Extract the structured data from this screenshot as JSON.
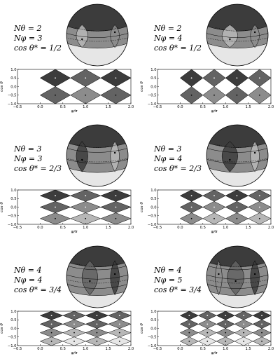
{
  "panels": [
    {
      "id": "a",
      "n_theta_text": "Nθ = 2",
      "n_phi_text": "Nφ = 3",
      "cos_text": "cos θ* = 1/2",
      "n_theta": 2,
      "n_phi": 3,
      "cos_star": 0.5
    },
    {
      "id": "b",
      "n_theta_text": "Nθ = 2",
      "n_phi_text": "Nφ = 4",
      "cos_text": "cos θ* = 1/2",
      "n_theta": 2,
      "n_phi": 4,
      "cos_star": 0.5
    },
    {
      "id": "c",
      "n_theta_text": "Nθ = 3",
      "n_phi_text": "Nφ = 3",
      "cos_text": "cos θ* = 2/3",
      "n_theta": 3,
      "n_phi": 3,
      "cos_star": 0.6667
    },
    {
      "id": "d",
      "n_theta_text": "Nθ = 3",
      "n_phi_text": "Nφ = 4",
      "cos_text": "cos θ* = 2/3",
      "n_theta": 3,
      "n_phi": 4,
      "cos_star": 0.6667
    },
    {
      "id": "e",
      "n_theta_text": "Nθ = 4",
      "n_phi_text": "Nφ = 4",
      "cos_text": "cos θ* = 3/4",
      "n_theta": 4,
      "n_phi": 4,
      "cos_star": 0.75
    },
    {
      "id": "f",
      "n_theta_text": "Nθ = 4",
      "n_phi_text": "Nφ = 5",
      "cos_text": "cos θ* = 3/4",
      "n_theta": 4,
      "n_phi": 5,
      "cos_star": 0.75
    }
  ],
  "axes": {
    "xlabel": "φ/π",
    "ylabel": "cos θ",
    "xticks": [
      "−0.5",
      "0.0",
      "0.5",
      "1.0",
      "1.5",
      "2.0"
    ],
    "xtick_values": [
      -0.5,
      0,
      0.5,
      1.0,
      1.5,
      2.0
    ],
    "yticks": [
      "1.0",
      "0.5",
      "0.0",
      "−0.5",
      "−1.0"
    ],
    "ytick_values": [
      1.0,
      0.5,
      0.0,
      -0.5,
      -1.0
    ],
    "xlim": [
      -0.5,
      2.0
    ],
    "ylim": [
      -1.0,
      1.0
    ]
  },
  "colors": {
    "darkest": "#3c3c3c",
    "dark": "#636363",
    "mid": "#8c8c8c",
    "light": "#b7b7b7",
    "lightest": "#e6e6e6",
    "line": "#000000"
  }
}
